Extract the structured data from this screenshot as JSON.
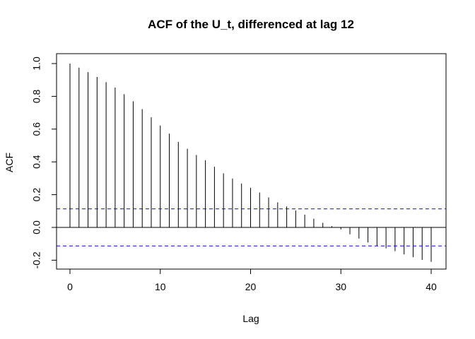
{
  "chart_data": {
    "type": "bar",
    "title": "ACF of the U_t, differenced at lag 12",
    "xlabel": "Lag",
    "ylabel": "ACF",
    "xlim": [
      0,
      40
    ],
    "ylim": [
      -0.25,
      1.0
    ],
    "x_ticks": [
      0,
      10,
      20,
      30,
      40
    ],
    "y_ticks": [
      -0.2,
      0.0,
      0.2,
      0.4,
      0.6,
      0.8,
      1.0
    ],
    "x_tick_labels": [
      "0",
      "10",
      "20",
      "30",
      "40"
    ],
    "y_tick_labels": [
      "-0.2",
      "0.0",
      "0.2",
      "0.4",
      "0.6",
      "0.8",
      "1.0"
    ],
    "lags": [
      0,
      1,
      2,
      3,
      4,
      5,
      6,
      7,
      8,
      9,
      10,
      11,
      12,
      13,
      14,
      15,
      16,
      17,
      18,
      19,
      20,
      21,
      22,
      23,
      24,
      25,
      26,
      27,
      28,
      29,
      30,
      31,
      32,
      33,
      34,
      35,
      36,
      37,
      38,
      39,
      40
    ],
    "values": [
      1.0,
      0.975,
      0.948,
      0.918,
      0.887,
      0.854,
      0.813,
      0.77,
      0.722,
      0.672,
      0.622,
      0.572,
      0.522,
      0.48,
      0.442,
      0.41,
      0.37,
      0.33,
      0.298,
      0.268,
      0.242,
      0.213,
      0.183,
      0.153,
      0.128,
      0.103,
      0.078,
      0.053,
      0.028,
      0.008,
      -0.012,
      -0.042,
      -0.068,
      -0.092,
      -0.112,
      -0.128,
      -0.145,
      -0.165,
      -0.182,
      -0.198,
      -0.21
    ],
    "confidence_bound": 0.113,
    "colors": {
      "bars": "#000000",
      "confidence": "#0000ff",
      "zero_line": "#000000",
      "frame": "#000000"
    },
    "grid": false,
    "legend": "none"
  }
}
